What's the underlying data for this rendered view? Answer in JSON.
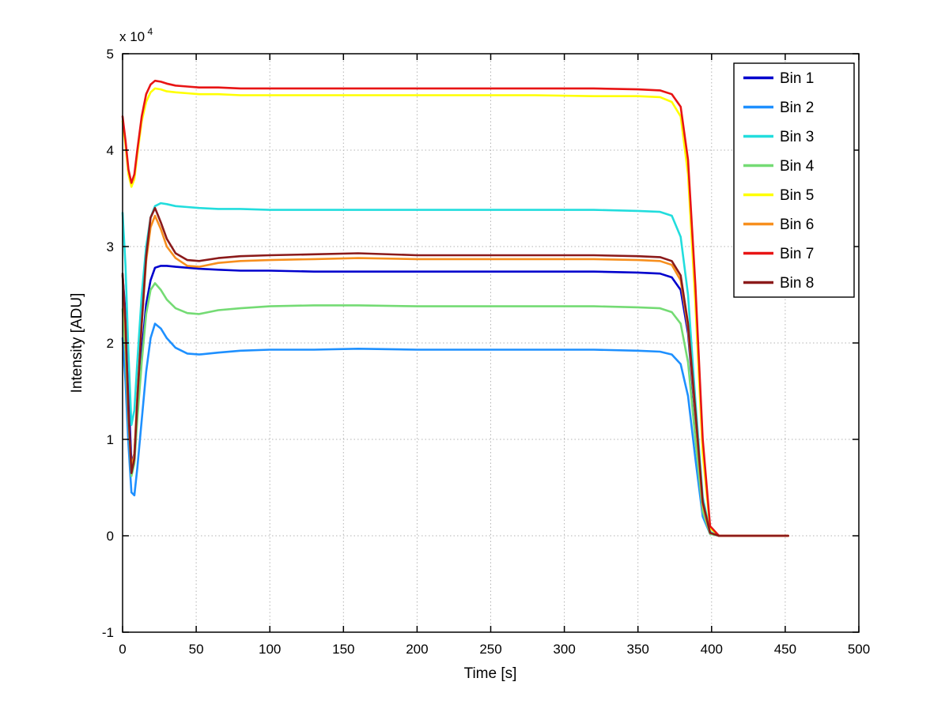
{
  "figure": {
    "background": "#ffffff",
    "plot_border_color": "#000000",
    "grid_color": "#b3b3b3"
  },
  "chart_data": {
    "type": "line",
    "title": "",
    "xlabel": "Time [s]",
    "ylabel": "Intensity [ADU]",
    "y_multiplier": {
      "base": "x 10",
      "exponent": "4"
    },
    "xlim": [
      0,
      500
    ],
    "ylim": [
      -1,
      5
    ],
    "x_ticks": [
      0,
      50,
      100,
      150,
      200,
      250,
      300,
      350,
      400,
      450,
      500
    ],
    "x_tick_labels": [
      "0",
      "50",
      "100",
      "150",
      "200",
      "250",
      "300",
      "350",
      "400",
      "450",
      "500"
    ],
    "y_ticks": [
      -1,
      0,
      1,
      2,
      3,
      4,
      5
    ],
    "y_tick_labels": [
      "-1",
      "0",
      "1",
      "2",
      "3",
      "4",
      "5"
    ],
    "grid": true,
    "legend_position": "northeast",
    "y_units_note": "values in units of 1e4 ADU as indicated by the x 10^4 axis multiplier",
    "x": [
      0,
      2,
      4,
      6,
      8,
      10,
      13,
      16,
      19,
      22,
      26,
      30,
      36,
      44,
      52,
      65,
      80,
      100,
      130,
      160,
      200,
      240,
      280,
      320,
      350,
      365,
      373,
      379,
      384,
      389,
      394,
      399,
      405,
      452
    ],
    "series": [
      {
        "name": "Bin 1",
        "color": "#0000cd",
        "values": [
          2.7,
          2.3,
          1.5,
          0.75,
          0.85,
          1.3,
          1.9,
          2.4,
          2.65,
          2.78,
          2.8,
          2.8,
          2.79,
          2.78,
          2.77,
          2.76,
          2.75,
          2.75,
          2.74,
          2.74,
          2.74,
          2.74,
          2.74,
          2.74,
          2.73,
          2.72,
          2.68,
          2.55,
          2.1,
          1.2,
          0.3,
          0.03,
          0,
          0
        ]
      },
      {
        "name": "Bin 2",
        "color": "#1e90ff",
        "values": [
          2.05,
          1.6,
          0.95,
          0.45,
          0.42,
          0.7,
          1.2,
          1.7,
          2.05,
          2.2,
          2.15,
          2.05,
          1.95,
          1.89,
          1.88,
          1.9,
          1.92,
          1.93,
          1.93,
          1.94,
          1.93,
          1.93,
          1.93,
          1.93,
          1.92,
          1.91,
          1.88,
          1.78,
          1.45,
          0.8,
          0.2,
          0.02,
          0,
          0
        ]
      },
      {
        "name": "Bin 3",
        "color": "#22dddd",
        "values": [
          3.35,
          2.8,
          1.9,
          1.15,
          1.3,
          1.8,
          2.5,
          3.0,
          3.3,
          3.42,
          3.45,
          3.44,
          3.42,
          3.41,
          3.4,
          3.39,
          3.39,
          3.38,
          3.38,
          3.38,
          3.38,
          3.38,
          3.38,
          3.38,
          3.37,
          3.36,
          3.32,
          3.1,
          2.5,
          1.4,
          0.4,
          0.04,
          0,
          0
        ]
      },
      {
        "name": "Bin 4",
        "color": "#74db74",
        "values": [
          2.35,
          1.9,
          1.2,
          0.62,
          0.75,
          1.2,
          1.8,
          2.3,
          2.55,
          2.62,
          2.55,
          2.45,
          2.36,
          2.31,
          2.3,
          2.34,
          2.36,
          2.38,
          2.39,
          2.39,
          2.38,
          2.38,
          2.38,
          2.38,
          2.37,
          2.36,
          2.32,
          2.2,
          1.8,
          1.0,
          0.25,
          0.02,
          0,
          0
        ]
      },
      {
        "name": "Bin 5",
        "color": "#ffff00",
        "values": [
          4.3,
          4.05,
          3.75,
          3.62,
          3.7,
          3.95,
          4.3,
          4.5,
          4.6,
          4.64,
          4.63,
          4.61,
          4.6,
          4.59,
          4.58,
          4.58,
          4.57,
          4.57,
          4.57,
          4.57,
          4.57,
          4.57,
          4.57,
          4.56,
          4.56,
          4.55,
          4.5,
          4.35,
          3.75,
          2.4,
          0.85,
          0.08,
          0,
          0
        ]
      },
      {
        "name": "Bin 6",
        "color": "#f78f1e",
        "values": [
          2.7,
          2.1,
          1.25,
          0.7,
          0.85,
          1.45,
          2.2,
          2.85,
          3.2,
          3.32,
          3.18,
          3.0,
          2.88,
          2.8,
          2.79,
          2.83,
          2.85,
          2.86,
          2.87,
          2.88,
          2.87,
          2.87,
          2.87,
          2.87,
          2.86,
          2.85,
          2.81,
          2.65,
          2.15,
          1.25,
          0.32,
          0.03,
          0,
          0
        ]
      },
      {
        "name": "Bin 7",
        "color": "#e81414",
        "values": [
          4.35,
          4.1,
          3.8,
          3.66,
          3.75,
          4.0,
          4.35,
          4.58,
          4.68,
          4.72,
          4.71,
          4.69,
          4.67,
          4.66,
          4.65,
          4.65,
          4.64,
          4.64,
          4.64,
          4.64,
          4.64,
          4.64,
          4.64,
          4.64,
          4.63,
          4.62,
          4.58,
          4.45,
          3.9,
          2.6,
          1.0,
          0.1,
          0,
          0
        ]
      },
      {
        "name": "Bin 8",
        "color": "#8b1a1a",
        "values": [
          2.72,
          2.2,
          1.3,
          0.65,
          0.8,
          1.4,
          2.2,
          2.9,
          3.3,
          3.4,
          3.25,
          3.08,
          2.93,
          2.86,
          2.85,
          2.88,
          2.9,
          2.91,
          2.92,
          2.93,
          2.91,
          2.91,
          2.91,
          2.91,
          2.9,
          2.89,
          2.85,
          2.7,
          2.2,
          1.3,
          0.35,
          0.03,
          0,
          0
        ]
      }
    ]
  }
}
